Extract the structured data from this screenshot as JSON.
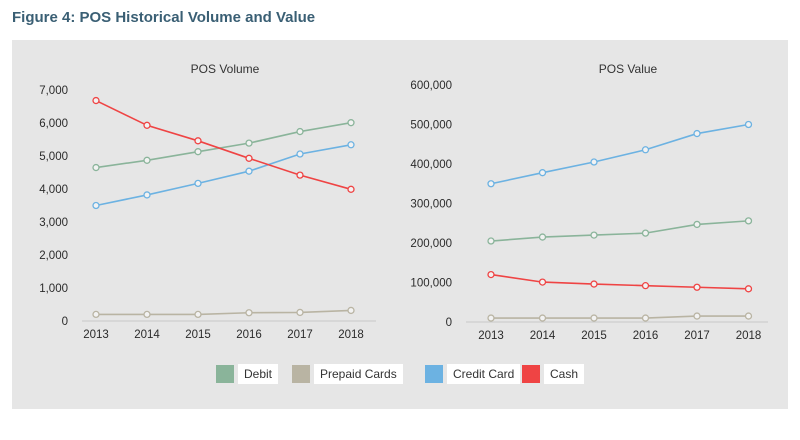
{
  "figure_title": "Figure 4: POS Historical Volume and Value",
  "legend": [
    {
      "label": "Debit",
      "color": "#8ab49a"
    },
    {
      "label": "Prepaid Cards",
      "color": "#b9b4a3"
    },
    {
      "label": "Credit Card",
      "color": "#6cb2e2"
    },
    {
      "label": "Cash",
      "color": "#ef4444"
    }
  ],
  "chart_data": [
    {
      "type": "line",
      "title": "POS Volume",
      "categories": [
        "2013",
        "2014",
        "2015",
        "2016",
        "2017",
        "2018"
      ],
      "ylim": [
        0,
        7000
      ],
      "yticks": [
        0,
        1000,
        2000,
        3000,
        4000,
        5000,
        6000,
        7000
      ],
      "ytick_labels": [
        "0",
        "1,000",
        "2,000",
        "3,000",
        "4,000",
        "5,000",
        "6,000",
        "7,000"
      ],
      "series": [
        {
          "name": "Debit",
          "color": "#8ab49a",
          "values": [
            4650,
            4870,
            5130,
            5390,
            5740,
            6010
          ]
        },
        {
          "name": "Prepaid Cards",
          "color": "#b9b4a3",
          "values": [
            200,
            200,
            200,
            250,
            260,
            320
          ]
        },
        {
          "name": "Credit Card",
          "color": "#6cb2e2",
          "values": [
            3500,
            3820,
            4170,
            4540,
            5060,
            5340
          ]
        },
        {
          "name": "Cash",
          "color": "#ef4444",
          "values": [
            6680,
            5930,
            5460,
            4930,
            4420,
            3990
          ]
        }
      ]
    },
    {
      "type": "line",
      "title": "POS Value",
      "categories": [
        "2013",
        "2014",
        "2015",
        "2016",
        "2017",
        "2018"
      ],
      "ylim": [
        0,
        600000
      ],
      "yticks": [
        0,
        100000,
        200000,
        300000,
        400000,
        500000,
        600000
      ],
      "ytick_labels": [
        "0",
        "100,000",
        "200,000",
        "300,000",
        "400,000",
        "500,000",
        "600,000"
      ],
      "series": [
        {
          "name": "Debit",
          "color": "#8ab49a",
          "values": [
            205000,
            215000,
            220000,
            225000,
            247000,
            256000
          ]
        },
        {
          "name": "Prepaid Cards",
          "color": "#b9b4a3",
          "values": [
            10000,
            10000,
            10000,
            10000,
            15000,
            15000
          ]
        },
        {
          "name": "Credit Card",
          "color": "#6cb2e2",
          "values": [
            350000,
            378000,
            405000,
            436000,
            477000,
            500000
          ]
        },
        {
          "name": "Cash",
          "color": "#ef4444",
          "values": [
            120000,
            101000,
            96000,
            92000,
            88000,
            84000
          ]
        }
      ]
    }
  ]
}
